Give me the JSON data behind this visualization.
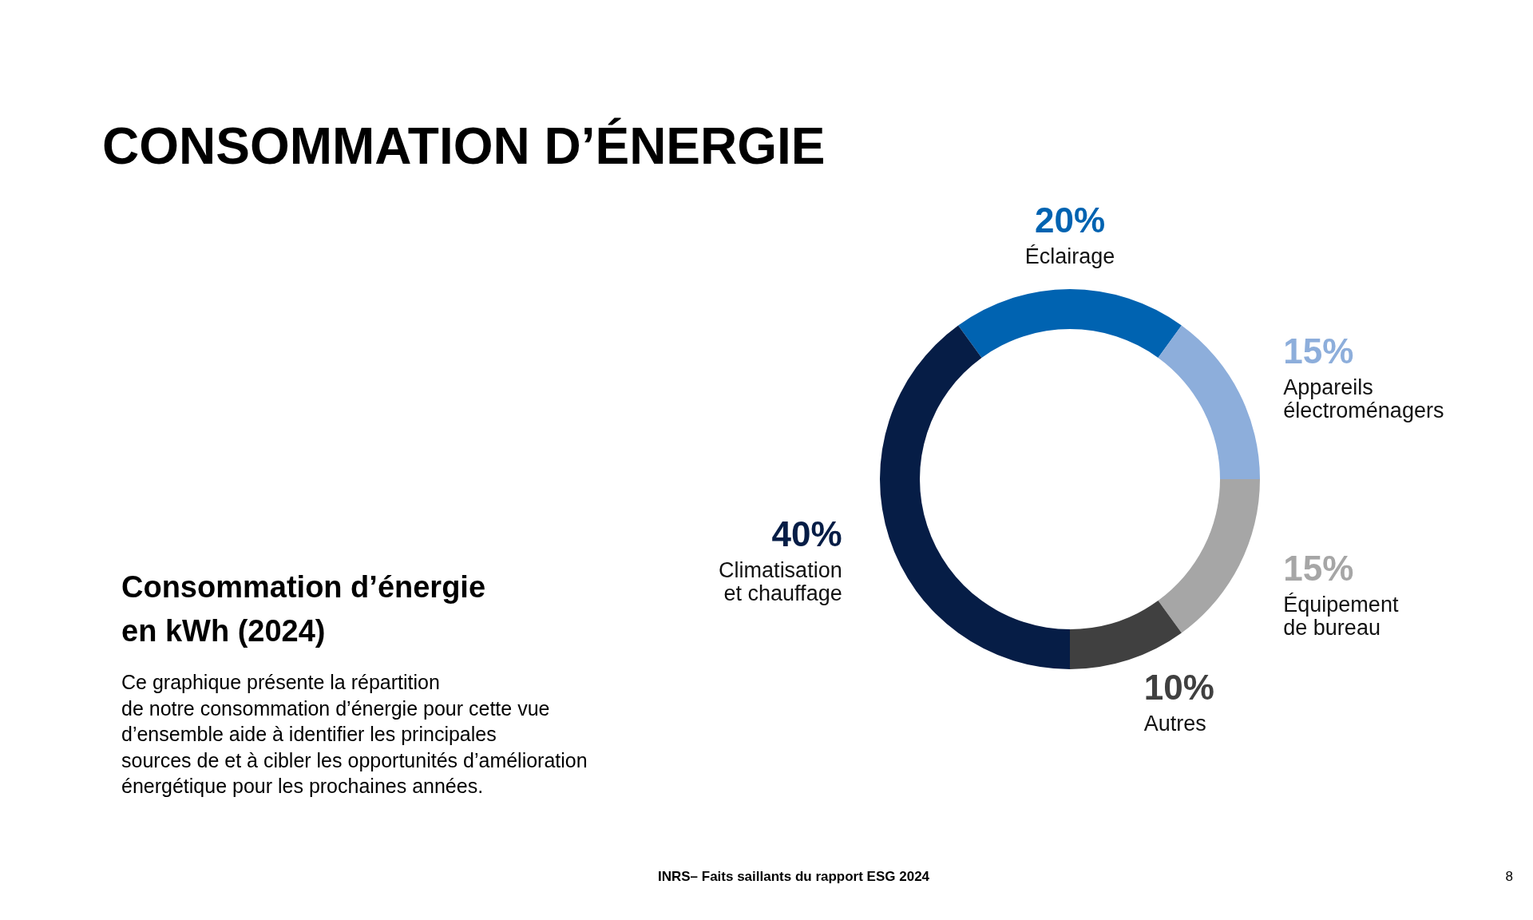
{
  "chart_data": {
    "type": "donut",
    "title": "CONSOMMATION D’ÉNERGIE",
    "subtitle": "Consommation d’énergie\nen kWh (2024)",
    "categories": [
      "Éclairage",
      "Appareils\nélectroménagers",
      "Équipement\nde bureau",
      "Autres",
      "Climatisation\net chauffage"
    ],
    "values": [
      20,
      15,
      15,
      10,
      40
    ],
    "value_labels": [
      "20%",
      "15%",
      "15%",
      "10%",
      "40%"
    ],
    "colors": [
      "#0063b1",
      "#8daedb",
      "#a6a6a6",
      "#404040",
      "#061d46"
    ],
    "annotations": [
      "Ce graphique présente la répartition\nde notre consommation d’énergie pour cette vue\nd’ensemble aide à identifier les principales\nsources de et à cibler les opportunités d’amélioration\nénergétique pour les prochaines années.",
      "INRS– Faits saillants du rapport ESG 2024",
      "8"
    ]
  }
}
